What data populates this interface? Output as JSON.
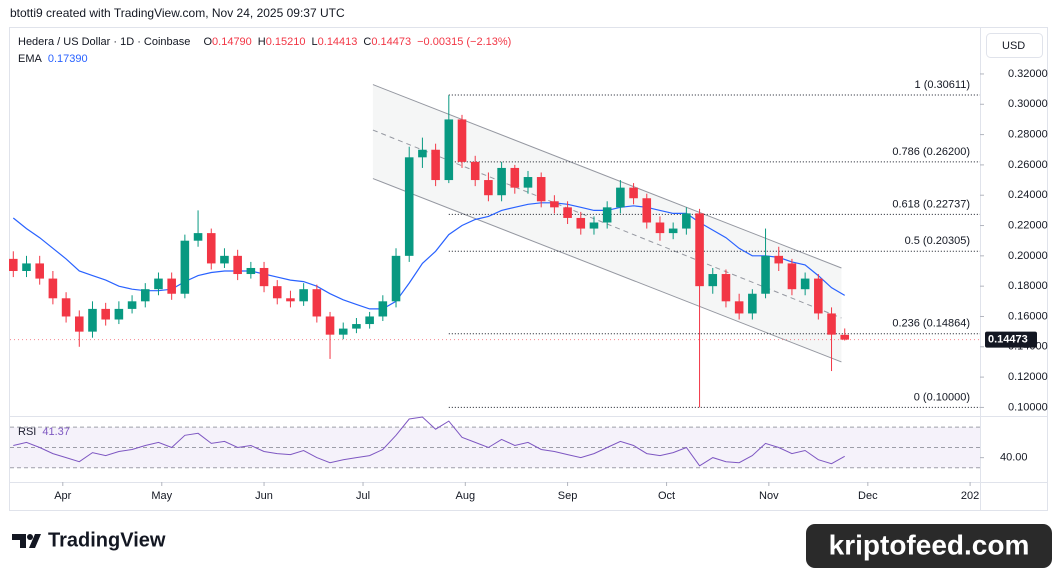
{
  "header": {
    "attribution": "btotti9 created with TradingView.com, Nov 24, 2025 09:37 UTC"
  },
  "chart_data": {
    "type": "candlestick",
    "title": "Hedera / US Dollar · 1D · Coinbase",
    "ohlc_legend": [
      {
        "label": "O",
        "value": "0.14790"
      },
      {
        "label": "H",
        "value": "0.15210"
      },
      {
        "label": "L",
        "value": "0.14413"
      },
      {
        "label": "C",
        "value": "0.14473"
      }
    ],
    "change": "−0.00315 (−2.13%)",
    "currency": "USD",
    "up_color": "#089981",
    "down_color": "#f23645",
    "x": [
      76,
      80,
      84,
      88,
      92,
      96,
      100,
      104,
      108,
      112,
      116,
      120,
      124,
      128,
      132,
      136,
      140,
      144,
      148,
      152,
      156,
      160,
      164,
      168,
      172,
      176,
      180,
      184,
      188,
      192,
      196,
      200,
      204,
      208,
      212,
      216,
      220,
      224,
      228,
      232,
      236,
      240,
      244,
      248,
      252,
      256,
      260,
      264,
      268,
      272,
      276,
      280,
      284,
      288,
      292,
      296,
      300,
      304,
      308,
      312,
      316,
      320,
      324,
      328
    ],
    "open": [
      0.198,
      0.19,
      0.195,
      0.185,
      0.172,
      0.16,
      0.15,
      0.165,
      0.158,
      0.165,
      0.17,
      0.178,
      0.185,
      0.175,
      0.21,
      0.215,
      0.195,
      0.2,
      0.188,
      0.192,
      0.18,
      0.172,
      0.17,
      0.178,
      0.16,
      0.148,
      0.152,
      0.155,
      0.16,
      0.17,
      0.2,
      0.265,
      0.27,
      0.25,
      0.29,
      0.262,
      0.25,
      0.24,
      0.258,
      0.245,
      0.252,
      0.236,
      0.232,
      0.225,
      0.218,
      0.222,
      0.232,
      0.245,
      0.238,
      0.222,
      0.215,
      0.218,
      0.228,
      0.18,
      0.188,
      0.17,
      0.162,
      0.175,
      0.2,
      0.195,
      0.178,
      0.185,
      0.162,
      0.1479
    ],
    "high": [
      0.203,
      0.2,
      0.2,
      0.19,
      0.176,
      0.164,
      0.17,
      0.169,
      0.17,
      0.174,
      0.182,
      0.189,
      0.189,
      0.214,
      0.23,
      0.218,
      0.205,
      0.204,
      0.196,
      0.196,
      0.184,
      0.177,
      0.182,
      0.181,
      0.163,
      0.156,
      0.159,
      0.163,
      0.174,
      0.205,
      0.272,
      0.278,
      0.274,
      0.306,
      0.293,
      0.266,
      0.255,
      0.262,
      0.26,
      0.256,
      0.255,
      0.24,
      0.236,
      0.229,
      0.226,
      0.236,
      0.25,
      0.248,
      0.241,
      0.226,
      0.222,
      0.232,
      0.231,
      0.192,
      0.191,
      0.175,
      0.178,
      0.218,
      0.206,
      0.198,
      0.189,
      0.188,
      0.166,
      0.1521
    ],
    "low": [
      0.186,
      0.186,
      0.181,
      0.168,
      0.156,
      0.14,
      0.146,
      0.154,
      0.155,
      0.162,
      0.166,
      0.174,
      0.171,
      0.172,
      0.206,
      0.191,
      0.192,
      0.184,
      0.185,
      0.176,
      0.168,
      0.166,
      0.167,
      0.156,
      0.132,
      0.145,
      0.149,
      0.152,
      0.157,
      0.166,
      0.196,
      0.258,
      0.246,
      0.248,
      0.258,
      0.246,
      0.236,
      0.236,
      0.241,
      0.241,
      0.232,
      0.228,
      0.221,
      0.214,
      0.214,
      0.218,
      0.228,
      0.234,
      0.218,
      0.21,
      0.211,
      0.214,
      0.1,
      0.175,
      0.166,
      0.158,
      0.158,
      0.172,
      0.19,
      0.174,
      0.174,
      0.158,
      0.124,
      0.14413
    ],
    "close": [
      0.19,
      0.195,
      0.185,
      0.172,
      0.16,
      0.15,
      0.165,
      0.158,
      0.165,
      0.17,
      0.178,
      0.185,
      0.175,
      0.21,
      0.215,
      0.195,
      0.2,
      0.188,
      0.192,
      0.18,
      0.172,
      0.17,
      0.178,
      0.16,
      0.148,
      0.152,
      0.155,
      0.16,
      0.17,
      0.2,
      0.265,
      0.27,
      0.25,
      0.29,
      0.262,
      0.25,
      0.24,
      0.258,
      0.245,
      0.252,
      0.236,
      0.232,
      0.225,
      0.218,
      0.222,
      0.232,
      0.245,
      0.238,
      0.222,
      0.215,
      0.218,
      0.228,
      0.18,
      0.188,
      0.17,
      0.162,
      0.175,
      0.2,
      0.195,
      0.178,
      0.185,
      0.162,
      0.148,
      0.14473
    ],
    "ema": {
      "name": "EMA",
      "value_label": "0.17390",
      "color": "#2962ff",
      "values": [
        0.225,
        0.218,
        0.212,
        0.205,
        0.198,
        0.19,
        0.187,
        0.184,
        0.18,
        0.178,
        0.177,
        0.177,
        0.178,
        0.183,
        0.187,
        0.189,
        0.19,
        0.19,
        0.19,
        0.188,
        0.186,
        0.184,
        0.183,
        0.18,
        0.175,
        0.171,
        0.168,
        0.165,
        0.165,
        0.17,
        0.182,
        0.195,
        0.203,
        0.214,
        0.22,
        0.224,
        0.226,
        0.23,
        0.232,
        0.234,
        0.235,
        0.235,
        0.234,
        0.232,
        0.23,
        0.23,
        0.232,
        0.233,
        0.232,
        0.23,
        0.228,
        0.228,
        0.222,
        0.217,
        0.212,
        0.205,
        0.2,
        0.2,
        0.199,
        0.196,
        0.194,
        0.187,
        0.179,
        0.1739
      ]
    },
    "xlim": [
      75,
      369
    ],
    "xticks": [
      {
        "value": 91,
        "label": "Apr"
      },
      {
        "value": 121,
        "label": "May"
      },
      {
        "value": 152,
        "label": "Jun"
      },
      {
        "value": 182,
        "label": "Jul"
      },
      {
        "value": 213,
        "label": "Aug"
      },
      {
        "value": 244,
        "label": "Sep"
      },
      {
        "value": 274,
        "label": "Oct"
      },
      {
        "value": 305,
        "label": "Nov"
      },
      {
        "value": 335,
        "label": "Dec"
      },
      {
        "value": 366,
        "label": "202"
      }
    ],
    "ylim": [
      0.095,
      0.349
    ],
    "yticks": [
      {
        "value": 0.32,
        "label": "0.32000"
      },
      {
        "value": 0.3,
        "label": "0.30000"
      },
      {
        "value": 0.28,
        "label": "0.28000"
      },
      {
        "value": 0.26,
        "label": "0.26000"
      },
      {
        "value": 0.24,
        "label": "0.24000"
      },
      {
        "value": 0.22,
        "label": "0.22000"
      },
      {
        "value": 0.2,
        "label": "0.20000"
      },
      {
        "value": 0.18,
        "label": "0.18000"
      },
      {
        "value": 0.16,
        "label": "0.16000"
      },
      {
        "value": 0.14,
        "label": "0.14000"
      },
      {
        "value": 0.12,
        "label": "0.12000"
      },
      {
        "value": 0.1,
        "label": "0.10000"
      }
    ],
    "last_price": {
      "value": 0.14473,
      "label": "0.14473"
    },
    "fib": {
      "from_x": 208,
      "levels": [
        {
          "value": 0.30611,
          "label": "1 (0.30611)"
        },
        {
          "value": 0.262,
          "label": "0.786 (0.26200)"
        },
        {
          "value": 0.22737,
          "label": "0.618 (0.22737)"
        },
        {
          "value": 0.20305,
          "label": "0.5 (0.20305)"
        },
        {
          "value": 0.14864,
          "label": "0.236 (0.14864)"
        },
        {
          "value": 0.1,
          "label": "0 (0.10000)"
        }
      ]
    },
    "channel": {
      "x": [
        185,
        327
      ],
      "upper": [
        0.313,
        0.192
      ],
      "middle": [
        0.283,
        0.159
      ],
      "lower": [
        0.251,
        0.13
      ]
    },
    "rsi": {
      "name": "RSI",
      "value_label": "41.37",
      "color": "#7e57c2",
      "ylim": [
        18,
        80
      ],
      "yticks": [
        {
          "value": 40,
          "label": "40.00"
        }
      ],
      "levels": [
        70,
        50,
        30
      ],
      "values": [
        52,
        55,
        50,
        44,
        40,
        36,
        45,
        42,
        46,
        48,
        52,
        55,
        50,
        62,
        64,
        54,
        56,
        50,
        52,
        46,
        44,
        43,
        47,
        40,
        35,
        38,
        40,
        42,
        48,
        62,
        78,
        80,
        68,
        76,
        60,
        55,
        50,
        58,
        52,
        55,
        48,
        46,
        43,
        40,
        44,
        50,
        56,
        52,
        44,
        42,
        45,
        50,
        32,
        40,
        36,
        35,
        42,
        54,
        50,
        44,
        47,
        38,
        34,
        41.37
      ]
    }
  },
  "footer": {
    "brand": "TradingView",
    "watermark": "kriptofeed.com"
  }
}
